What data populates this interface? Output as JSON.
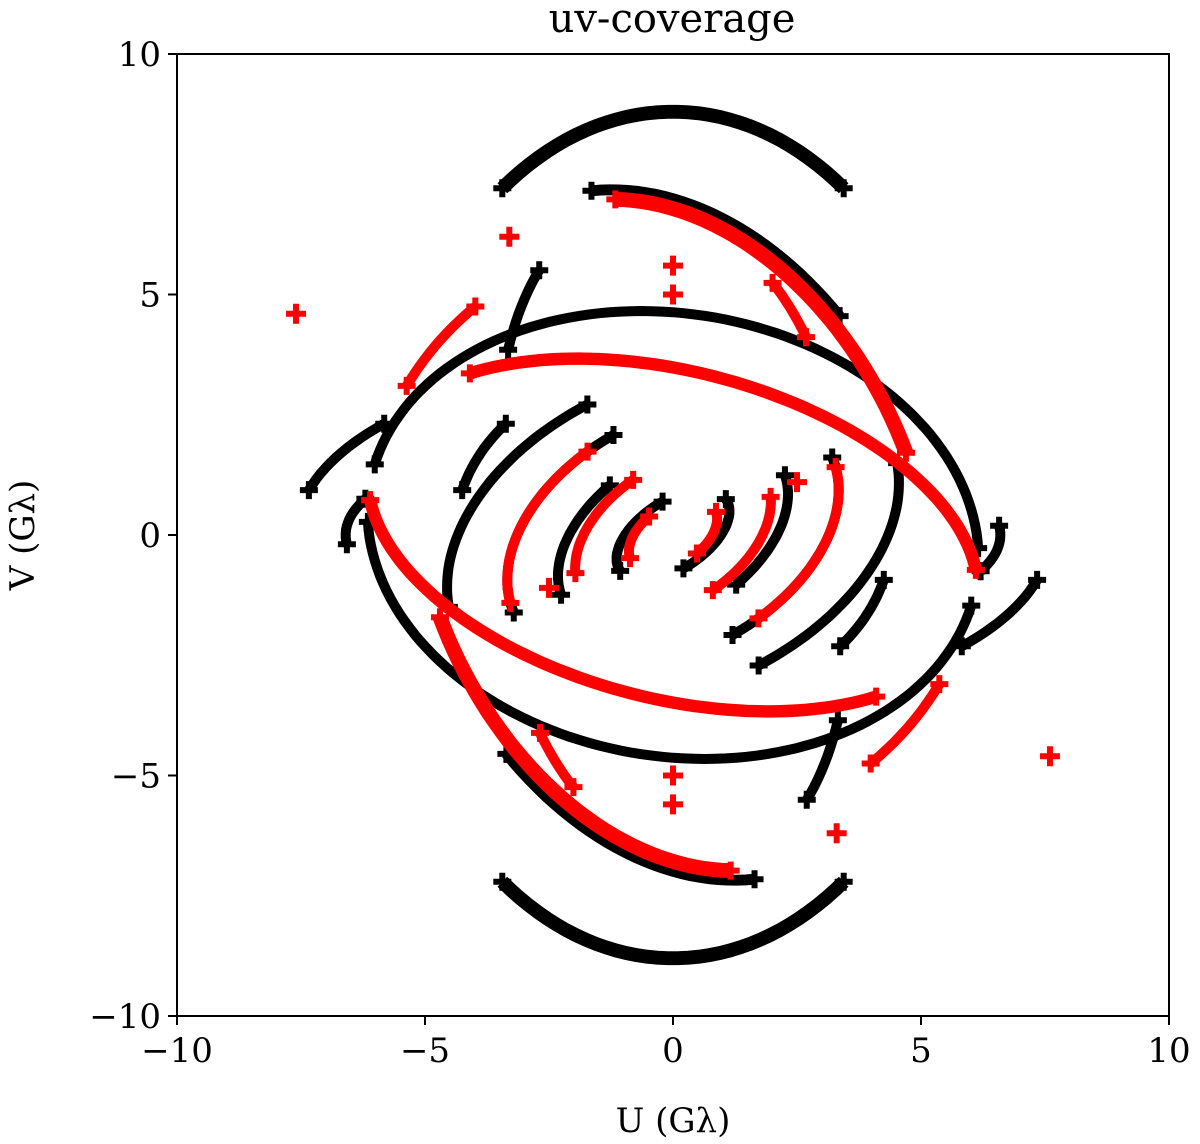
{
  "chart_data": {
    "type": "scatter",
    "title": "uv-coverage",
    "xlabel": "U (Gλ)",
    "ylabel": "V (Gλ)",
    "xlim": [
      -10,
      10
    ],
    "ylim": [
      -10,
      10
    ],
    "xticks": [
      -10,
      -5,
      0,
      5,
      10
    ],
    "yticks": [
      -10,
      -5,
      0,
      5,
      10
    ],
    "xtick_labels": [
      "−10",
      "−5",
      "0",
      "5",
      "10"
    ],
    "ytick_labels": [
      "−10",
      "−5",
      "0",
      "5",
      "10"
    ],
    "grid": false,
    "marker": "plus",
    "colors": {
      "black_series": "#000000",
      "red_series": "#ff0000"
    },
    "series": [
      {
        "color": "#000000",
        "tracks": [
          {
            "a": 6.0,
            "b": 8.8,
            "phi": 0,
            "t0": 55,
            "t1": 125,
            "w": 0.28
          },
          {
            "a": 6.0,
            "b": 8.8,
            "phi": 0,
            "t0": 235,
            "t1": 305,
            "w": 0.28
          },
          {
            "a": 6.2,
            "b": 4.6,
            "phi": -10,
            "t0": 10,
            "t1": 175,
            "w": 0.2
          },
          {
            "a": 6.2,
            "b": 4.6,
            "phi": -10,
            "t0": 190,
            "t1": 355,
            "w": 0.2
          },
          {
            "a": 5.2,
            "b": 7.4,
            "phi": 20,
            "t0": 25,
            "t1": 80,
            "w": 0.22
          },
          {
            "a": 5.2,
            "b": 7.4,
            "phi": 20,
            "t0": 205,
            "t1": 260,
            "w": 0.22
          },
          {
            "a": 4.8,
            "b": 3.2,
            "phi": 25,
            "t0": 95,
            "t1": 170,
            "w": 0.15
          },
          {
            "a": 4.8,
            "b": 3.2,
            "phi": 25,
            "t0": 275,
            "t1": 350,
            "w": 0.15
          },
          {
            "a": 3.6,
            "b": 2.4,
            "phi": 30,
            "t0": 90,
            "t1": 175,
            "w": 0.15
          },
          {
            "a": 3.6,
            "b": 2.4,
            "phi": 30,
            "t0": 270,
            "t1": 355,
            "w": 0.15
          },
          {
            "a": 2.6,
            "b": 1.6,
            "phi": 35,
            "t0": 100,
            "t1": 170,
            "w": 0.12
          },
          {
            "a": 2.6,
            "b": 1.6,
            "phi": 35,
            "t0": 280,
            "t1": 350,
            "w": 0.12
          },
          {
            "a": 1.3,
            "b": 0.7,
            "phi": 35,
            "t0": 80,
            "t1": 180,
            "w": 0.1
          },
          {
            "a": 1.3,
            "b": 0.7,
            "phi": 35,
            "t0": 260,
            "t1": 360,
            "w": 0.1
          },
          {
            "a": 7.6,
            "b": 3.6,
            "phi": 0,
            "t0": 140,
            "t1": 165,
            "w": 0.15
          },
          {
            "a": 7.6,
            "b": 3.6,
            "phi": 0,
            "t0": 320,
            "t1": 345,
            "w": 0.15
          },
          {
            "a": 6.6,
            "b": 2.2,
            "phi": 0,
            "t0": 160,
            "t1": 185,
            "w": 0.12
          },
          {
            "a": 6.6,
            "b": 2.2,
            "phi": 0,
            "t0": 340,
            "t1": 365,
            "w": 0.12
          },
          {
            "a": 3.4,
            "b": 6.8,
            "phi": 10,
            "t0": 120,
            "t1": 140,
            "w": 0.12
          },
          {
            "a": 3.4,
            "b": 6.8,
            "phi": 10,
            "t0": 300,
            "t1": 320,
            "w": 0.12
          },
          {
            "a": 4.4,
            "b": 3.6,
            "phi": 0,
            "t0": 140,
            "t1": 165,
            "w": 0.12
          },
          {
            "a": 4.4,
            "b": 3.6,
            "phi": 0,
            "t0": 320,
            "t1": 345,
            "w": 0.12
          }
        ]
      },
      {
        "color": "#ff0000",
        "tracks": [
          {
            "a": 5.0,
            "b": 7.2,
            "phi": 20,
            "t0": 0,
            "t1": 75,
            "w": 0.3
          },
          {
            "a": 5.0,
            "b": 7.2,
            "phi": 20,
            "t0": 180,
            "t1": 255,
            "w": 0.3
          },
          {
            "a": 6.3,
            "b": 3.4,
            "phi": -15,
            "t0": 15,
            "t1": 140,
            "w": 0.25
          },
          {
            "a": 6.3,
            "b": 3.4,
            "phi": -15,
            "t0": 195,
            "t1": 320,
            "w": 0.25
          },
          {
            "a": 3.6,
            "b": 2.4,
            "phi": 30,
            "t0": 100,
            "t1": 170,
            "w": 0.15
          },
          {
            "a": 3.6,
            "b": 2.4,
            "phi": 30,
            "t0": 280,
            "t1": 350,
            "w": 0.15
          },
          {
            "a": 2.2,
            "b": 1.4,
            "phi": 35,
            "t0": 90,
            "t1": 160,
            "w": 0.12
          },
          {
            "a": 2.2,
            "b": 1.4,
            "phi": 35,
            "t0": 270,
            "t1": 340,
            "w": 0.12
          },
          {
            "a": 1.0,
            "b": 0.6,
            "phi": 35,
            "t0": 100,
            "t1": 170,
            "w": 0.1
          },
          {
            "a": 1.0,
            "b": 0.6,
            "phi": 35,
            "t0": 280,
            "t1": 350,
            "w": 0.1
          },
          {
            "a": 6.2,
            "b": 6.2,
            "phi": 0,
            "t0": 130,
            "t1": 150,
            "w": 0.12
          },
          {
            "a": 6.2,
            "b": 6.2,
            "phi": 0,
            "t0": 310,
            "t1": 330,
            "w": 0.12
          },
          {
            "a": 3.5,
            "b": 6.4,
            "phi": 0,
            "t0": 40,
            "t1": 55,
            "w": 0.12
          },
          {
            "a": 3.5,
            "b": 6.4,
            "phi": 0,
            "t0": 220,
            "t1": 235,
            "w": 0.12
          }
        ],
        "points": [
          {
            "u": -7.6,
            "v": 4.6
          },
          {
            "u": 7.6,
            "v": -4.6
          },
          {
            "u": -3.3,
            "v": 6.2
          },
          {
            "u": 3.3,
            "v": -6.2
          },
          {
            "u": 0.0,
            "v": 5.6
          },
          {
            "u": 0.0,
            "v": -5.6
          },
          {
            "u": 0.0,
            "v": 5.0
          },
          {
            "u": 0.0,
            "v": -5.0
          },
          {
            "u": 2.5,
            "v": 1.1
          },
          {
            "u": -2.5,
            "v": -1.1
          }
        ]
      }
    ]
  }
}
